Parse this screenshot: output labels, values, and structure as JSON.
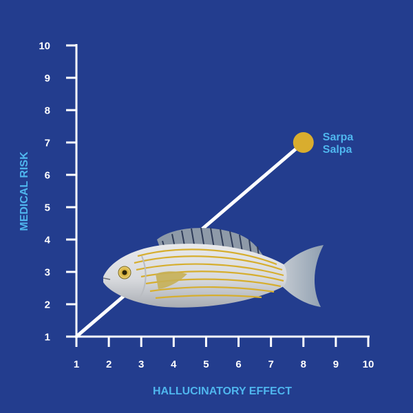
{
  "chart_data": {
    "type": "line",
    "xlabel": "HALLUCINATORY EFFECT",
    "ylabel": "MEDICAL RISK",
    "xlim": [
      1,
      10
    ],
    "ylim": [
      1,
      10
    ],
    "xticks": [
      "1",
      "2",
      "3",
      "4",
      "5",
      "6",
      "7",
      "8",
      "9",
      "10"
    ],
    "yticks": [
      "1",
      "2",
      "3",
      "4",
      "5",
      "6",
      "7",
      "8",
      "9",
      "10"
    ],
    "grid": false,
    "series": [
      {
        "x": [
          1,
          8
        ],
        "y": [
          1,
          7
        ]
      }
    ],
    "point": {
      "x": 8,
      "y": 7,
      "label_lines": [
        "Sarpa",
        "Salpa"
      ]
    },
    "colors": {
      "background": "#233d8e",
      "axis": "#ffffff",
      "line": "#ffffff",
      "marker": "#d9ad2e",
      "label": "#4fb6ee"
    }
  },
  "illustration": {
    "icon": "fish-icon"
  }
}
